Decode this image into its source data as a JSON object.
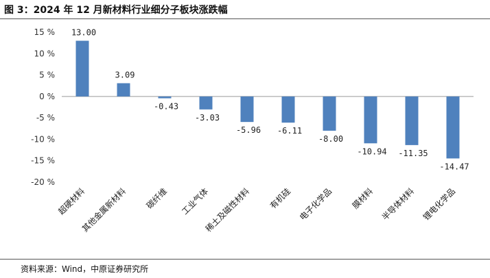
{
  "title": "图 3：2024 年 12 月新材料行业细分子板块涨跌幅",
  "source": "资料来源：Wind，中原证券研究所",
  "colors": {
    "bar": "#4f81bd",
    "axis": "#999999"
  },
  "chart_data": {
    "type": "bar",
    "categories": [
      "超硬材料",
      "其他金属新材料",
      "碳纤维",
      "工业气体",
      "稀土及磁性材料",
      "有机硅",
      "电子化学品",
      "膜材料",
      "半导体材料",
      "锂电化学品"
    ],
    "values": [
      13.0,
      3.09,
      -0.43,
      -3.03,
      -5.96,
      -6.11,
      -8.0,
      -10.94,
      -11.35,
      -14.47
    ],
    "data_labels": [
      "13.00",
      "3.09",
      "-0.43",
      "-3.03",
      "-5.96",
      "-6.11",
      "-8.00",
      "-10.94",
      "-11.35",
      "-14.47"
    ],
    "yticks": [
      "15 %",
      "10 %",
      "5 %",
      "0 %",
      "-5 %",
      "-10 %",
      "-15 %",
      "-20 %"
    ],
    "ytick_values": [
      15,
      10,
      5,
      0,
      -5,
      -10,
      -15,
      -20
    ],
    "ylim": [
      -20,
      15
    ],
    "grid": false,
    "legend": "none"
  }
}
